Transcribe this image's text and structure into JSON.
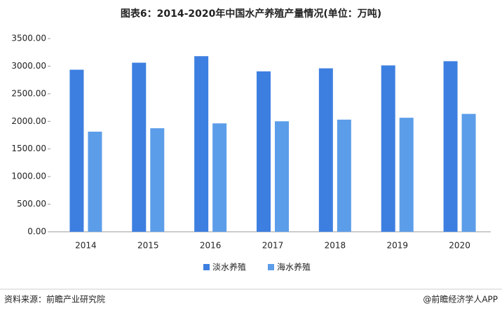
{
  "chart_data": {
    "type": "bar",
    "title": "图表6：2014-2020年中国水产养殖产量情况(单位：万吨)",
    "categories": [
      "2014",
      "2015",
      "2016",
      "2017",
      "2018",
      "2019",
      "2020"
    ],
    "series": [
      {
        "name": "淡水养殖",
        "color": "#3d7fe0",
        "values": [
          2935,
          3062,
          3180,
          2905,
          2960,
          3013,
          3089
        ]
      },
      {
        "name": "海水养殖",
        "color": "#5c9de9",
        "values": [
          1813,
          1875,
          1963,
          2001,
          2031,
          2065,
          2135
        ]
      }
    ],
    "ylim": [
      0,
      3500
    ],
    "yticks": [
      {
        "value": 0,
        "label": "0.00"
      },
      {
        "value": 500,
        "label": "500.00"
      },
      {
        "value": 1000,
        "label": "1000.00"
      },
      {
        "value": 1500,
        "label": "1500.00"
      },
      {
        "value": 2000,
        "label": "2000.00"
      },
      {
        "value": 2500,
        "label": "2500.00"
      },
      {
        "value": 3000,
        "label": "3000.00"
      },
      {
        "value": 3500,
        "label": "3500.00"
      }
    ],
    "legend": "bottom"
  },
  "footer": {
    "source": "资料来源：前瞻产业研究院",
    "brand": "@前瞻经济学人APP"
  }
}
